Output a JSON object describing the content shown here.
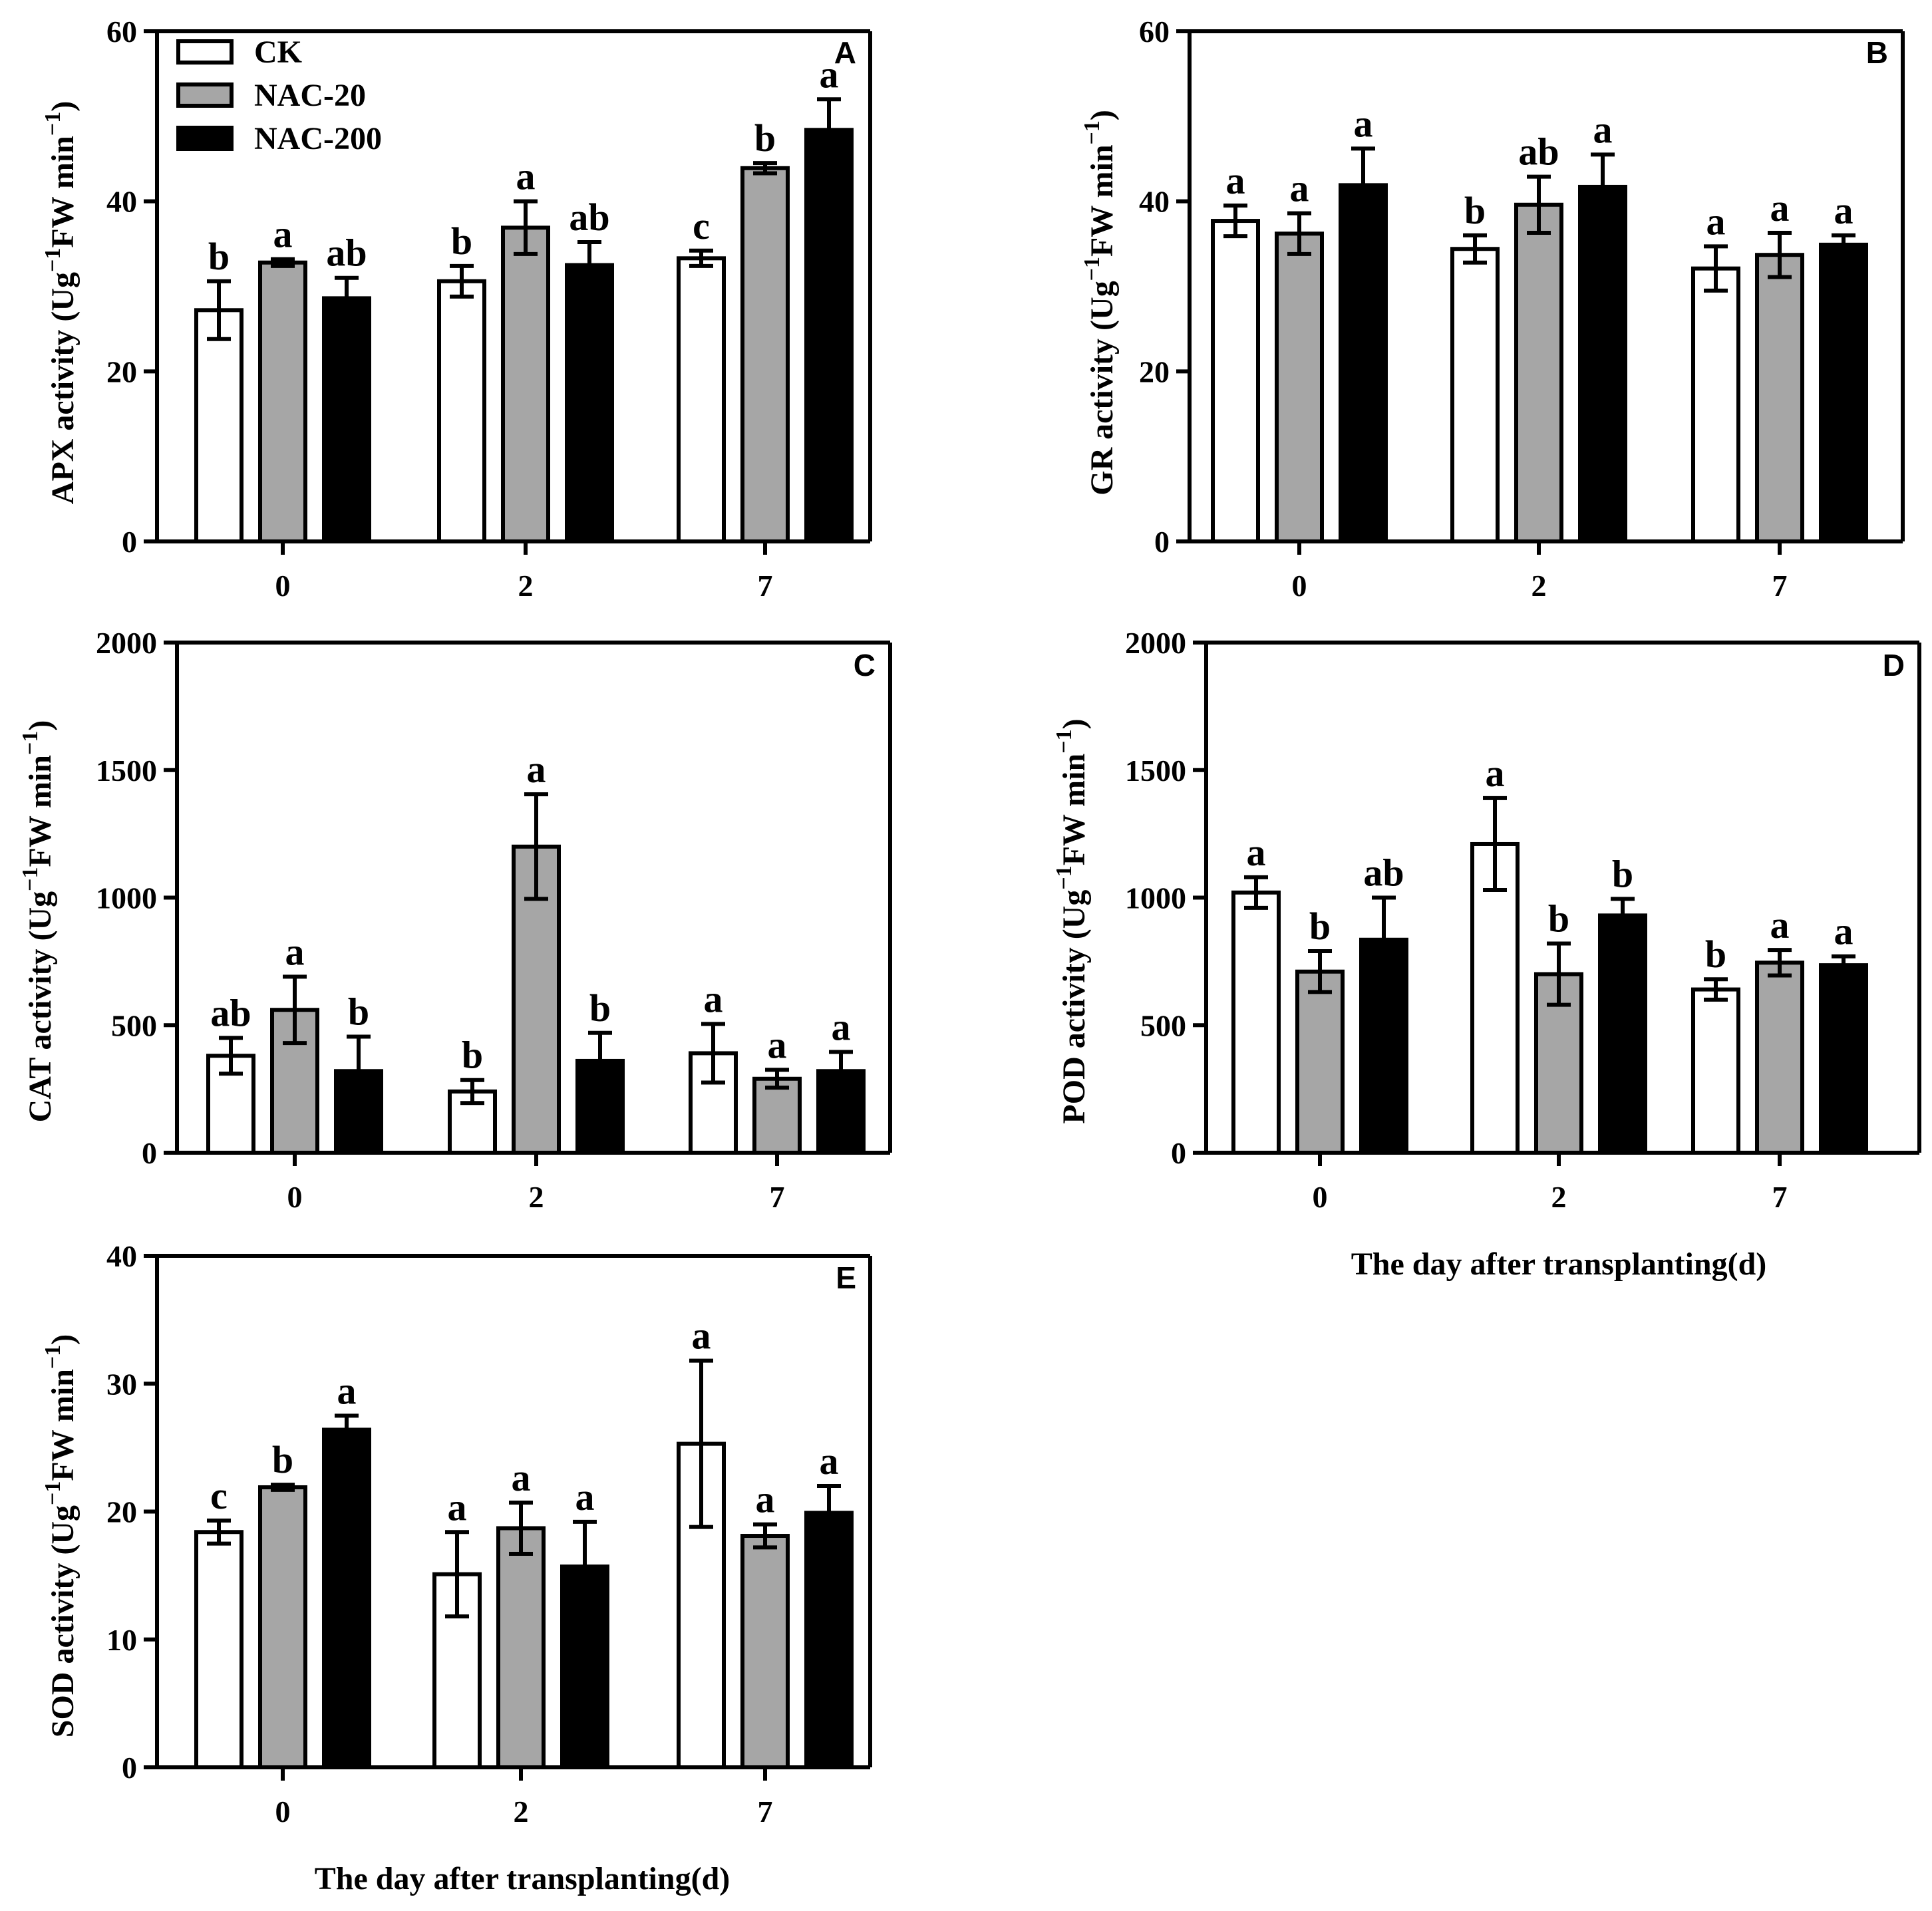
{
  "figure": {
    "groups": [
      "0",
      "2",
      "7"
    ],
    "xlabel": "The day after transplanting(d)",
    "colors": {
      "CK": "#ffffff",
      "NAC-20": "#a6a6a6",
      "NAC-200": "#000000"
    },
    "legend": {
      "entries": [
        {
          "name": "CK",
          "color": "#ffffff"
        },
        {
          "name": "NAC-20",
          "color": "#a6a6a6"
        },
        {
          "name": "NAC-200",
          "color": "#000000"
        }
      ]
    }
  },
  "chart_data": [
    {
      "id": "A",
      "type": "bar",
      "ylabel_main": "APX activity (Ug",
      "ylabel_tail": "FW min",
      "ylabel_sup": "−1",
      "ylim": [
        0,
        60
      ],
      "yticks": [
        0,
        20,
        40,
        60
      ],
      "categories": [
        "0",
        "2",
        "7"
      ],
      "series": [
        {
          "name": "CK",
          "values": [
            27.2,
            30.6,
            33.3
          ],
          "errors": [
            3.4,
            1.8,
            0.9
          ],
          "letters": [
            "b",
            "b",
            "c"
          ]
        },
        {
          "name": "NAC-20",
          "values": [
            32.8,
            36.9,
            43.9
          ],
          "errors": [
            0.4,
            3.1,
            0.6
          ],
          "letters": [
            "a",
            "a",
            "b"
          ]
        },
        {
          "name": "NAC-200",
          "values": [
            28.6,
            32.5,
            48.4
          ],
          "errors": [
            2.4,
            2.7,
            3.6
          ],
          "letters": [
            "ab",
            "ab",
            "a"
          ]
        }
      ]
    },
    {
      "id": "B",
      "type": "bar",
      "ylabel_main": "GR activity (Ug",
      "ylabel_tail": "FW min",
      "ylabel_sup": "−1",
      "ylim": [
        0,
        60
      ],
      "yticks": [
        0,
        20,
        40,
        60
      ],
      "categories": [
        "0",
        "2",
        "7"
      ],
      "series": [
        {
          "name": "CK",
          "values": [
            37.7,
            34.4,
            32.1
          ],
          "errors": [
            1.8,
            1.6,
            2.6
          ],
          "letters": [
            "a",
            "b",
            "a"
          ]
        },
        {
          "name": "NAC-20",
          "values": [
            36.2,
            39.6,
            33.7
          ],
          "errors": [
            2.4,
            3.3,
            2.6
          ],
          "letters": [
            "a",
            "ab",
            "a"
          ]
        },
        {
          "name": "NAC-200",
          "values": [
            41.9,
            41.7,
            34.9
          ],
          "errors": [
            4.3,
            3.8,
            1.1
          ],
          "letters": [
            "a",
            "a",
            "a"
          ]
        }
      ]
    },
    {
      "id": "C",
      "type": "bar",
      "ylabel_main": "CAT activity (Ug",
      "ylabel_tail": "FW min",
      "ylabel_sup": "−1",
      "ylim": [
        0,
        2000
      ],
      "yticks": [
        0,
        500,
        1000,
        1500,
        2000
      ],
      "categories": [
        "0",
        "2",
        "7"
      ],
      "series": [
        {
          "name": "CK",
          "values": [
            380,
            240,
            390
          ],
          "errors": [
            70,
            45,
            115
          ],
          "letters": [
            "ab",
            "b",
            "a"
          ]
        },
        {
          "name": "NAC-20",
          "values": [
            560,
            1200,
            290
          ],
          "errors": [
            130,
            205,
            35
          ],
          "letters": [
            "a",
            "a",
            "a"
          ]
        },
        {
          "name": "NAC-200",
          "values": [
            320,
            360,
            320
          ],
          "errors": [
            135,
            110,
            75
          ],
          "letters": [
            "b",
            "b",
            "a"
          ]
        }
      ]
    },
    {
      "id": "D",
      "type": "bar",
      "ylabel_main": "POD activity (Ug",
      "ylabel_tail": "FW min",
      "ylabel_sup": "−1",
      "ylim": [
        0,
        2000
      ],
      "yticks": [
        0,
        500,
        1000,
        1500,
        2000
      ],
      "categories": [
        "0",
        "2",
        "7"
      ],
      "series": [
        {
          "name": "CK",
          "values": [
            1020,
            1210,
            640
          ],
          "errors": [
            60,
            180,
            40
          ],
          "letters": [
            "a",
            "a",
            "b"
          ]
        },
        {
          "name": "NAC-20",
          "values": [
            710,
            700,
            745
          ],
          "errors": [
            80,
            120,
            50
          ],
          "letters": [
            "b",
            "b",
            "a"
          ]
        },
        {
          "name": "NAC-200",
          "values": [
            835,
            930,
            735
          ],
          "errors": [
            165,
            65,
            35
          ],
          "letters": [
            "ab",
            "b",
            "a"
          ]
        }
      ]
    },
    {
      "id": "E",
      "type": "bar",
      "ylabel_main": "SOD activity (Ug",
      "ylabel_tail": "FW min",
      "ylabel_sup": "−1",
      "ylim": [
        0,
        40
      ],
      "yticks": [
        0,
        10,
        20,
        30,
        40
      ],
      "categories": [
        "0",
        "2",
        "7"
      ],
      "series": [
        {
          "name": "CK",
          "values": [
            18.4,
            15.1,
            25.3
          ],
          "errors": [
            0.9,
            3.3,
            6.5
          ],
          "letters": [
            "c",
            "a",
            "a"
          ]
        },
        {
          "name": "NAC-20",
          "values": [
            21.9,
            18.7,
            18.1
          ],
          "errors": [
            0.2,
            2.0,
            0.9
          ],
          "letters": [
            "b",
            "a",
            "a"
          ]
        },
        {
          "name": "NAC-200",
          "values": [
            26.4,
            15.7,
            19.9
          ],
          "errors": [
            1.1,
            3.5,
            2.1
          ],
          "letters": [
            "a",
            "a",
            "a"
          ]
        }
      ]
    }
  ]
}
